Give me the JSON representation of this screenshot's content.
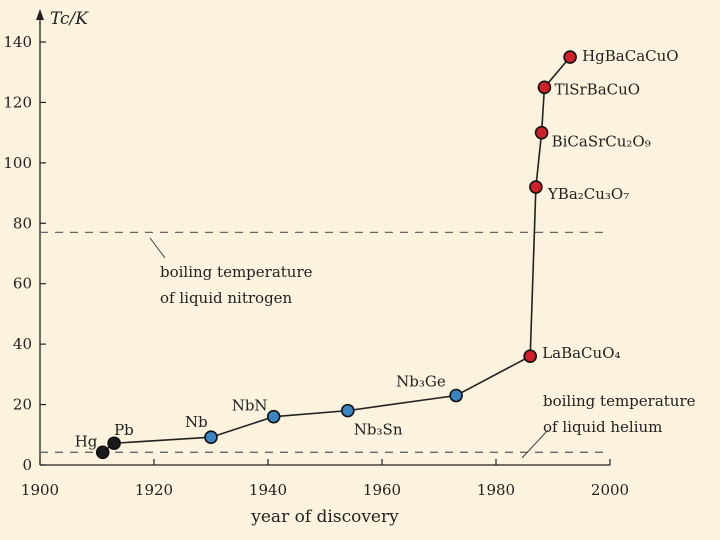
{
  "chart_data": {
    "type": "line",
    "title": "",
    "xlabel": "year of discovery",
    "ylabel": "Tc/K",
    "xlim": [
      1900,
      2000
    ],
    "ylim": [
      0,
      140
    ],
    "xticks": [
      "1900",
      "1920",
      "1940",
      "1960",
      "1980",
      "2000"
    ],
    "yticks": [
      "0",
      "20",
      "40",
      "60",
      "80",
      "100",
      "120",
      "140"
    ],
    "grid": false,
    "series": [
      {
        "name": "",
        "points": [
          {
            "label": "Hg",
            "x": 1911,
            "y": 4.2,
            "color": "#1a1a1a"
          },
          {
            "label": "Pb",
            "x": 1913,
            "y": 7.2,
            "color": "#1a1a1a"
          },
          {
            "label": "Nb",
            "x": 1930,
            "y": 9.2,
            "color": "#3a86c4"
          },
          {
            "label": "NbN",
            "x": 1941,
            "y": 16,
            "color": "#3a86c4"
          },
          {
            "label": "Nb₃Sn",
            "x": 1954,
            "y": 18,
            "color": "#3a86c4"
          },
          {
            "label": "Nb₃Ge",
            "x": 1973,
            "y": 23,
            "color": "#3a86c4"
          },
          {
            "label": "LaBaCuO₄",
            "x": 1986,
            "y": 36,
            "color": "#d0202a"
          },
          {
            "label": "YBa₂Cu₃O₇",
            "x": 1987,
            "y": 92,
            "color": "#d0202a"
          },
          {
            "label": "BiCaSrCu₂O₉",
            "x": 1988,
            "y": 110,
            "color": "#d0202a"
          },
          {
            "label": "TlSrBaCuO",
            "x": 1988.5,
            "y": 125,
            "color": "#d0202a"
          },
          {
            "label": "HgBaCaCuO",
            "x": 1993,
            "y": 135,
            "color": "#d0202a"
          }
        ]
      }
    ],
    "reference_lines": [
      {
        "y": 77,
        "label_lines": [
          "boiling temperature",
          "of liquid nitrogen"
        ]
      },
      {
        "y": 4.2,
        "label_lines": [
          "boiling temperature",
          "of liquid helium"
        ]
      }
    ]
  }
}
